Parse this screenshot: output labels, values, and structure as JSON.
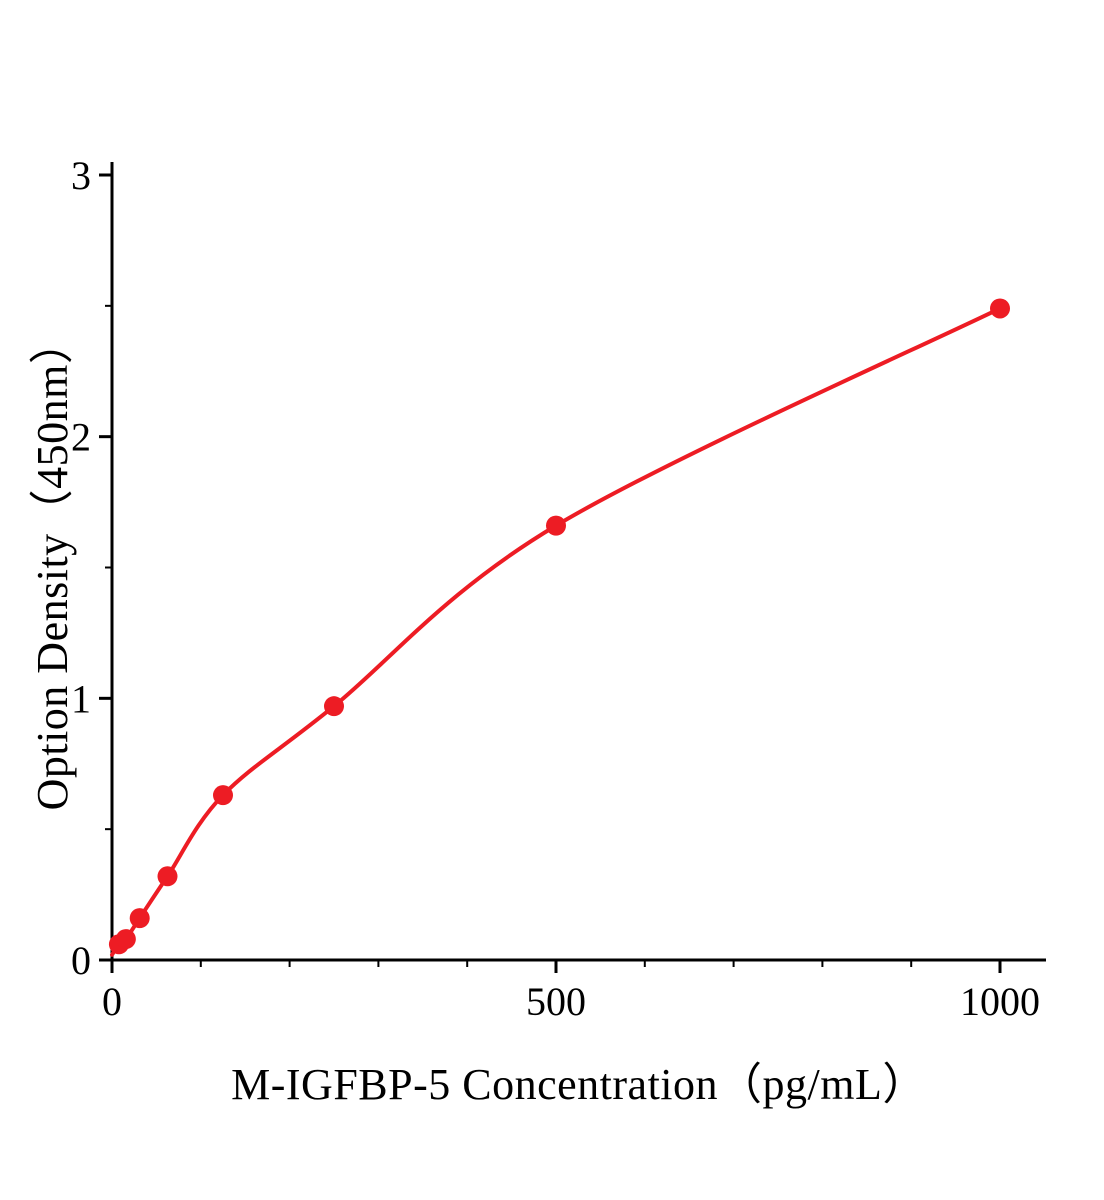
{
  "figure": {
    "background": "#ffffff"
  },
  "chart_data": {
    "type": "scatter",
    "title": "",
    "xlabel": "M-IGFBP-5 Concentration（pg/mL）",
    "ylabel": "Option Density（450nm）",
    "x": [
      7.8,
      15.6,
      31.2,
      62.5,
      125,
      250,
      500,
      1000
    ],
    "y": [
      0.06,
      0.08,
      0.16,
      0.32,
      0.63,
      0.97,
      1.66,
      2.49
    ],
    "curve_start": [
      0,
      0.02
    ],
    "xlim": [
      0,
      1000
    ],
    "ylim": [
      0,
      3
    ],
    "xticks": [
      0,
      500,
      1000
    ],
    "yticks": [
      0,
      1,
      2,
      3
    ],
    "minor_tick_step_x": 100,
    "minor_tick_step_y": 0.5,
    "grid": false,
    "legend": "none",
    "marker": "circle",
    "colors": {
      "curve": "#ed1c24",
      "points": "#ed1c24",
      "axis": "#000000",
      "text": "#000000"
    }
  }
}
